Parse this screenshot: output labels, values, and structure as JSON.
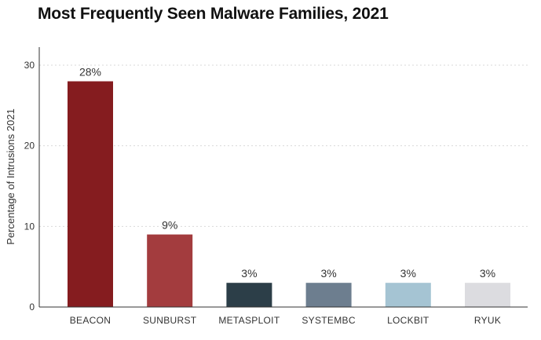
{
  "chart_data": {
    "type": "bar",
    "title": "Most Frequently Seen Malware Families, 2021",
    "ylabel": "Percentage of Intrusions 2021",
    "xlabel": "",
    "ylim": [
      0,
      30
    ],
    "y_ticks": [
      0,
      10,
      20,
      30
    ],
    "grid": true,
    "categories": [
      "BEACON",
      "SUNBURST",
      "METASPLOIT",
      "SYSTEMBC",
      "LOCKBIT",
      "RYUK"
    ],
    "values": [
      28,
      9,
      3,
      3,
      3,
      3
    ],
    "value_labels": [
      "28%",
      "9%",
      "3%",
      "3%",
      "3%",
      "3%"
    ],
    "colors": [
      "#851c1f",
      "#a33c3e",
      "#2c3e48",
      "#6d7e8f",
      "#a5c4d3",
      "#dcdce0"
    ]
  }
}
